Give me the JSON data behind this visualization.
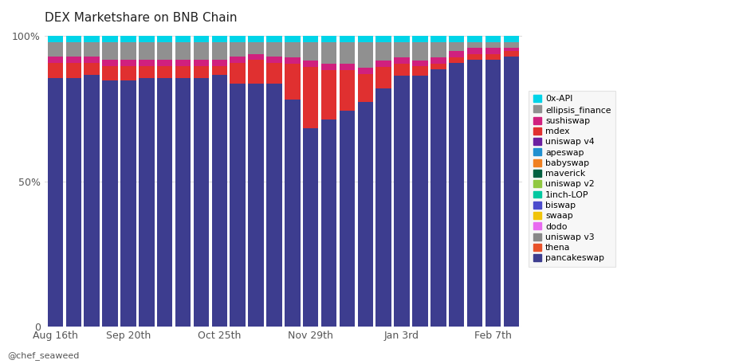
{
  "title": "DEX Marketshare on BNB Chain",
  "background_color": "#ffffff",
  "plot_bg_color": "#ffffff",
  "x_labels": [
    "Aug 16th",
    "Sep 20th",
    "Oct 25th",
    "Nov 29th",
    "Jan 3rd",
    "Feb 7th"
  ],
  "x_tick_positions": [
    0,
    4,
    9,
    14,
    19,
    24
  ],
  "num_bars": 26,
  "series": {
    "pancakeswap": {
      "color": "#3d3d8f",
      "values": [
        84,
        84,
        85,
        83,
        83,
        84,
        84,
        84,
        84,
        85,
        82,
        82,
        82,
        75,
        65,
        67,
        70,
        72,
        78,
        82,
        83,
        85,
        88,
        91,
        91,
        91
      ]
    },
    "thena": {
      "color": "#e8522a",
      "values": [
        0,
        0,
        0,
        0,
        0,
        0,
        0,
        0,
        0,
        0,
        0,
        0,
        0,
        0,
        0,
        0,
        0,
        0,
        0,
        0,
        0,
        0,
        0,
        0,
        0,
        0
      ]
    },
    "uniswap v3": {
      "color": "#888888",
      "values": [
        0,
        0,
        0,
        0,
        0,
        0,
        0,
        0,
        0,
        0,
        0,
        0,
        0,
        0,
        0,
        0,
        0,
        0,
        0,
        0,
        0,
        0,
        0,
        0,
        0,
        0
      ]
    },
    "dodo": {
      "color": "#e86af0",
      "values": [
        0,
        0,
        0,
        0,
        0,
        0,
        0,
        0,
        0,
        0,
        0,
        0,
        0,
        0,
        0,
        0,
        0,
        0,
        0,
        0,
        0,
        0,
        0,
        0,
        0,
        0
      ]
    },
    "swaap": {
      "color": "#f0c40a",
      "values": [
        0,
        0,
        0,
        0,
        0,
        0,
        0,
        0,
        0,
        0,
        0,
        0,
        0,
        0,
        0,
        0,
        0,
        0,
        0,
        0,
        0,
        0,
        0,
        0,
        0,
        0
      ]
    },
    "biswap": {
      "color": "#4b4bcc",
      "values": [
        0,
        0,
        0,
        0,
        0,
        0,
        0,
        0,
        0,
        0,
        0,
        0,
        0,
        0,
        0,
        0,
        0,
        0,
        0,
        0,
        0,
        0,
        0,
        0,
        0,
        0
      ]
    },
    "1inch-LOP": {
      "color": "#00c8a0",
      "values": [
        0,
        0,
        0,
        0,
        0,
        0,
        0,
        0,
        0,
        0,
        0,
        0,
        0,
        0,
        0,
        0,
        0,
        0,
        0,
        0,
        0,
        0,
        0,
        0,
        0,
        0
      ]
    },
    "uniswap v2": {
      "color": "#90c840",
      "values": [
        0,
        0,
        0,
        0,
        0,
        0,
        0,
        0,
        0,
        0,
        0,
        0,
        0,
        0,
        0,
        0,
        0,
        0,
        0,
        0,
        0,
        0,
        0,
        0,
        0,
        0
      ]
    },
    "maverick": {
      "color": "#006040",
      "values": [
        0,
        0,
        0,
        0,
        0,
        0,
        0,
        0,
        0,
        0,
        0,
        0,
        0,
        0,
        0,
        0,
        0,
        0,
        0,
        0,
        0,
        0,
        0,
        0,
        0,
        0
      ]
    },
    "babyswap": {
      "color": "#f08020",
      "values": [
        0,
        0,
        0,
        0,
        0,
        0,
        0,
        0,
        0,
        0,
        0,
        0,
        0,
        0,
        0,
        0,
        0,
        0,
        0,
        0,
        0,
        0,
        0,
        0,
        0,
        0
      ]
    },
    "apeswap": {
      "color": "#2090d0",
      "values": [
        0,
        0,
        0,
        0,
        0,
        0,
        0,
        0,
        0,
        0,
        0,
        0,
        0,
        0,
        0,
        0,
        0,
        0,
        0,
        0,
        0,
        0,
        0,
        0,
        0,
        0
      ]
    },
    "uniswap v4": {
      "color": "#6b20a0",
      "values": [
        0,
        0,
        0,
        0,
        0,
        0,
        0,
        0,
        0,
        0,
        0,
        0,
        0,
        0,
        0,
        0,
        0,
        0,
        0,
        0,
        0,
        0,
        0,
        0,
        0,
        0
      ]
    },
    "mdex": {
      "color": "#e03030",
      "values": [
        5,
        5,
        4,
        5,
        5,
        4,
        4,
        4,
        4,
        3,
        7,
        8,
        7,
        12,
        20,
        16,
        13,
        9,
        7,
        4,
        3,
        2,
        2,
        2,
        2,
        2
      ]
    },
    "sushiswap": {
      "color": "#d0207e",
      "values": [
        2,
        2,
        2,
        2,
        2,
        2,
        2,
        2,
        2,
        2,
        2,
        2,
        2,
        2,
        2,
        2,
        2,
        2,
        2,
        2,
        2,
        2,
        2,
        2,
        2,
        1
      ]
    },
    "ellipsis_finance": {
      "color": "#909090",
      "values": [
        5,
        5,
        5,
        6,
        6,
        6,
        6,
        6,
        6,
        6,
        5,
        4,
        5,
        5,
        6,
        7,
        7,
        8,
        6,
        5,
        6,
        5,
        3,
        2,
        2,
        2
      ]
    },
    "0x-API": {
      "color": "#00d4e8",
      "values": [
        2,
        2,
        2,
        2,
        2,
        2,
        2,
        2,
        2,
        2,
        2,
        2,
        2,
        2,
        2,
        2,
        2,
        2,
        2,
        2,
        2,
        2,
        2,
        2,
        2,
        2
      ]
    }
  },
  "footer_text": "@chef_seaweed",
  "legend_box_color": "#f5f5f5",
  "legend_border_color": "#dddddd"
}
